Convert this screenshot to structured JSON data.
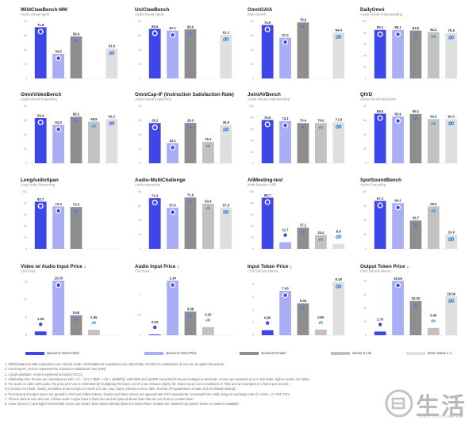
{
  "colors": {
    "qwen3_omni_flash": "#3d46e6",
    "qwen3_5_omni_plus": "#a9aef5",
    "gemini_flash": "#8e8e8e",
    "seed_lite": "#c2c2c2",
    "muse_spark": "#dfdfdf"
  },
  "series_names": [
    "Qwen3.5-Omni-Flash",
    "Qwen3.5-Omni-Plus",
    "Gemini3.0-Flash",
    "Seed2.0-Lite",
    "Muse Spark 1.2"
  ],
  "chart_data": [
    {
      "type": "bar",
      "title": "WildClawBench-MM",
      "subtitle": "Audio-Visual Agent",
      "categories": [
        "Qwen3.5-Omni-Flash",
        "Qwen3.5-Omni-Plus",
        "Gemini3.0-Flash",
        "Seed2.0-Lite",
        "Muse Spark 1.2"
      ],
      "values": [
        71.8,
        34.5,
        58.9,
        null,
        41.9
      ],
      "labels": [
        "71.8",
        "34.5",
        "58.9",
        "",
        "41.9"
      ],
      "ylim": [
        0,
        80
      ],
      "yticks": [
        "0",
        "20",
        "40",
        "60",
        "80"
      ]
    },
    {
      "type": "bar",
      "title": "UniClawBench",
      "subtitle": "Audio-Visual Agent",
      "categories": [
        "Qwen3.5-Omni-Flash",
        "Qwen3.5-Omni-Plus",
        "Gemini3.0-Flash",
        "Seed2.0-Lite",
        "Muse Spark 1.2"
      ],
      "values": [
        69.6,
        67.1,
        69.0,
        null,
        61.2
      ],
      "labels": [
        "69.6",
        "67.1",
        "69.0",
        "",
        "61.2"
      ],
      "ylim": [
        0,
        80
      ],
      "yticks": [
        "0",
        "20",
        "40",
        "60",
        "80"
      ]
    },
    {
      "type": "bar",
      "title": "OmniGAIA",
      "subtitle": "Web Search",
      "categories": [
        "Qwen3.5-Omni-Flash",
        "Qwen3.5-Omni-Plus",
        "Gemini3.0-Flash",
        "Seed2.0-Lite",
        "Muse Spark 1.2"
      ],
      "values": [
        74.9,
        57.2,
        78.6,
        null,
        64.4
      ],
      "labels": [
        "74.9",
        "57.2",
        "78.6",
        "",
        "64.4"
      ],
      "ylim": [
        0,
        80
      ],
      "yticks": [
        "0",
        "20",
        "40",
        "60",
        "80"
      ]
    },
    {
      "type": "bar",
      "title": "DailyOmni",
      "subtitle": "Audio-Visual Understanding",
      "categories": [
        "Qwen3.5-Omni-Flash",
        "Qwen3.5-Omni-Plus",
        "Gemini3.0-Flash",
        "Seed2.0-Lite",
        "Muse Spark 1.2"
      ],
      "values": [
        85.1,
        85.1,
        84.0,
        81.4,
        79.6
      ],
      "labels": [
        "85.1",
        "85.1",
        "84.0",
        "81.4",
        "79.6"
      ],
      "ylim": [
        0,
        100
      ],
      "yticks": [
        "0",
        "20",
        "40",
        "60",
        "80",
        "100"
      ]
    },
    {
      "type": "bar",
      "title": "OmniVideoBench",
      "subtitle": "Audio-Visual Reasoning",
      "categories": [
        "Qwen3.5-Omni-Flash",
        "Qwen3.5-Omni-Plus",
        "Gemini3.0-Flash",
        "Seed2.0-Lite",
        "Muse Spark 1.2"
      ],
      "values": [
        63.4,
        53.8,
        65.2,
        58.5,
        62.2
      ],
      "labels": [
        "63.4",
        "53.8",
        "65.2",
        "58.5",
        "62.2"
      ],
      "ylim": [
        0,
        80
      ],
      "yticks": [
        "0",
        "20",
        "40",
        "60",
        "80"
      ]
    },
    {
      "type": "bar",
      "title": "OmniCap-IF (Instruction Satisfaction Rate)",
      "subtitle": "Audio-Visual Captioning",
      "categories": [
        "Qwen3.5-Omni-Flash",
        "Qwen3.5-Omni-Plus",
        "Gemini3.0-Flash",
        "Seed2.0-Lite",
        "Muse Spark 1.2"
      ],
      "values": [
        28.2,
        14.1,
        28.3,
        15.1,
        26.8
      ],
      "labels": [
        "28.2",
        "14.1",
        "28.3",
        "15.1",
        "26.8"
      ],
      "ylim": [
        0,
        40
      ],
      "yticks": [
        "0",
        "10",
        "20",
        "30",
        "40"
      ]
    },
    {
      "type": "bar",
      "title": "JointAVBench",
      "subtitle": "Audio-Visual Understanding",
      "categories": [
        "Qwen3.5-Omni-Flash",
        "Qwen3.5-Omni-Plus",
        "Gemini3.0-Flash",
        "Seed2.0-Lite",
        "Muse Spark 1.2"
      ],
      "values": [
        75.9,
        74.1,
        70.4,
        70.6,
        71.8
      ],
      "labels": [
        "75.9",
        "74.1",
        "70.4",
        "70.6",
        "71.8"
      ],
      "ylim": [
        0,
        100
      ],
      "yticks": [
        "0",
        "20",
        "40",
        "60",
        "80",
        "100"
      ]
    },
    {
      "type": "bar",
      "title": "QIVD",
      "subtitle": "Audio-Visual Interaction",
      "categories": [
        "Qwen3.5-Omni-Flash",
        "Qwen3.5-Omni-Plus",
        "Gemini3.0-Flash",
        "Seed2.0-Lite",
        "Muse Spark 1.2"
      ],
      "values": [
        69.5,
        65.6,
        69.1,
        62.0,
        62.0
      ],
      "labels": [
        "69.5",
        "65.6",
        "69.1",
        "62.0",
        "62.0"
      ],
      "ylim": [
        0,
        80
      ],
      "yticks": [
        "0",
        "20",
        "40",
        "60",
        "80"
      ]
    },
    {
      "type": "bar",
      "title": "LongAudioSpan",
      "subtitle": "Long Audio Reasoning",
      "categories": [
        "Qwen3.5-Omni-Flash",
        "Qwen3.5-Omni-Plus",
        "Gemini3.0-Flash",
        "Seed2.0-Lite",
        "Muse Spark 1.2"
      ],
      "values": [
        82.7,
        74.4,
        73.3,
        null,
        null
      ],
      "labels": [
        "82.7",
        "74.4",
        "73.3",
        "",
        ""
      ],
      "ylim": [
        0,
        100
      ],
      "yticks": [
        "0",
        "20",
        "40",
        "60",
        "80",
        "100"
      ]
    },
    {
      "type": "bar",
      "title": "Audio-MultiChallenge",
      "subtitle": "Audio Interaction",
      "categories": [
        "Qwen3.5-Omni-Flash",
        "Qwen3.5-Omni-Plus",
        "Gemini3.0-Flash",
        "Seed2.0-Lite",
        "Muse Spark 1.2"
      ],
      "values": [
        71.0,
        57.6,
        71.9,
        63.4,
        57.9
      ],
      "labels": [
        "71.0",
        "57.6",
        "71.9",
        "63.4",
        "57.9"
      ],
      "ylim": [
        0,
        80
      ],
      "yticks": [
        "0",
        "20",
        "40",
        "60",
        "80"
      ]
    },
    {
      "type": "bar",
      "title": "AliMeeting-test",
      "subtitle": "Multi-Speaker ASR",
      "categories": [
        "Qwen3.5-Omni-Flash",
        "Qwen3.5-Omni-Plus",
        "Gemini3.0-Flash",
        "Seed2.0-Lite",
        "Muse Spark 1.2"
      ],
      "values": [
        89.7,
        11.7,
        37.1,
        24.4,
        8.8
      ],
      "labels": [
        "89.7",
        "11.7",
        "37.1",
        "24.4",
        "8.8"
      ],
      "ylim": [
        0,
        100
      ],
      "yticks": [
        "0",
        "20",
        "40",
        "60",
        "80",
        "100"
      ]
    },
    {
      "type": "bar",
      "title": "SpotSoundBench",
      "subtitle": "Audio Grounding",
      "categories": [
        "Qwen3.5-Omni-Flash",
        "Qwen3.5-Omni-Plus",
        "Gemini3.0-Flash",
        "Seed2.0-Lite",
        "Muse Spark 1.2"
      ],
      "values": [
        67.2,
        64.2,
        39.7,
        59.6,
        19.9
      ],
      "labels": [
        "67.2",
        "64.2",
        "39.7",
        "59.6",
        "19.9"
      ],
      "ylim": [
        0,
        80
      ],
      "yticks": [
        "0",
        "20",
        "40",
        "60",
        "80"
      ]
    },
    {
      "type": "bar",
      "title": "Video w/ Audio Input Price ↓",
      "subtitle": "CNY/hour",
      "categories": [
        "Qwen3.5-Omni-Flash",
        "Qwen3.5-Omni-Plus",
        "Gemini3.0-Flash",
        "Seed2.0-Lite",
        "Muse Spark 1.2"
      ],
      "values": [
        1.06,
        15.3,
        5.6,
        1.55,
        null
      ],
      "labels": [
        "1.06",
        "15.30",
        "5.60",
        "1.55",
        ""
      ],
      "ylim": [
        0,
        16
      ],
      "yticks": [
        "0",
        "5",
        "10",
        "15"
      ]
    },
    {
      "type": "bar",
      "title": "Audio Input Price ↓",
      "subtitle": "CNY/hour",
      "categories": [
        "Qwen3.5-Omni-Flash",
        "Qwen3.5-Omni-Plus",
        "Gemini3.0-Flash",
        "Seed2.0-Lite",
        "Muse Spark 1.2"
      ],
      "values": [
        0.02,
        1.34,
        0.58,
        0.2,
        null
      ],
      "labels": [
        "0.02",
        "1.34",
        "0.58",
        "0.20",
        ""
      ],
      "ylim": [
        0,
        1.4
      ],
      "yticks": [
        "0",
        "0.5",
        "1"
      ]
    },
    {
      "type": "bar",
      "title": "Input Token Price ↓",
      "subtitle": "CNY/1M text tokens",
      "categories": [
        "Qwen3.5-Omni-Flash",
        "Qwen3.5-Omni-Plus",
        "Gemini3.0-Flash",
        "Seed2.0-Lite",
        "Muse Spark 1.2"
      ],
      "values": [
        0.8,
        7.0,
        5.04,
        0.9,
        8.4
      ],
      "labels": [
        "0.80",
        "7.00",
        "5.04",
        "0.90",
        "8.40"
      ],
      "ylim": [
        0,
        9
      ],
      "yticks": [
        "0",
        "2",
        "4",
        "6",
        "8"
      ]
    },
    {
      "type": "bar",
      "title": "Output Token Price ↓",
      "subtitle": "CNY/1M text tokens",
      "categories": [
        "Qwen3.5-Omni-Flash",
        "Qwen3.5-Omni-Plus",
        "Gemini3.0-Flash",
        "Seed2.0-Lite",
        "Muse Spark 1.2"
      ],
      "values": [
        2.7,
        40.0,
        25.2,
        5.4,
        28.56
      ],
      "labels": [
        "2.70",
        "40.00",
        "25.20",
        "5.40",
        "28.56"
      ],
      "ylim": [
        0,
        42
      ],
      "yticks": [
        "0",
        "10",
        "20",
        "30",
        "40"
      ]
    }
  ],
  "notes": [
    "1. WildClawBench-MM evaluations use Claude Code. UniClawBench evaluations use OpenClaw. OmniGAIA evaluations do not use an agent framework.",
    "2. OmniCap-IF: Scores represent the instruction satisfaction rate (ISR).",
    "3. LongAudioSpan: Scores represent accuracy (ACC).",
    "4. AliMeeting-test: Scores are calculated as 100 × (1 − (0.5 × DER + 0.5 × cpWER)), with DER and cpWER converted from percentages to decimals. Scores are reported on a 0–100 scale; higher scores are better.",
    "5. For audio or video with audio, the price per hour is estimated by multiplying the input cost of a two minutes clip by 30. Video inputs use a resolution of 720p and are sampled at 1 frame per second.",
    "   For Gemini 3.0 Flash, media_resolution is set to high; for Seed 2.0 Lite, max_frame_tokens is set to 384. All other API parameters remain at their default settings.",
    "6. Text input and output prices are quoted in CNY per million tokens. Gemini and Muse prices are approximate CNY equivalents, converted from USD using an exchange rate of 1 USD = 6.7181 CNY.",
    "7. All bars start at zero and use a linear scale. Logos have a fixed size and are placed above bars that are too short to contain them.",
    "8. Lower prices (↓) and higher benchmark scores are better. Bold values identify Qwen3.5-Omni-Flash. Models are omitted from panels where no value is available."
  ],
  "watermark": {
    "text": "生活",
    "url": "www.52elife.net"
  },
  "icons": [
    "qwen-logo-icon",
    "gemini-logo-icon",
    "seed-logo-icon",
    "meta-logo-icon"
  ]
}
